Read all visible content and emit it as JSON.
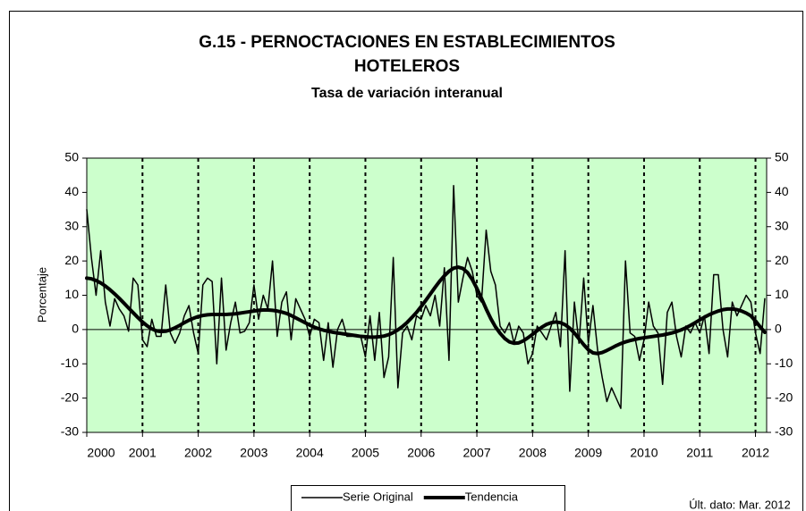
{
  "chart_data": {
    "type": "line",
    "title": [
      "G.15 - PERNOCTACIONES EN ESTABLECIMIENTOS",
      "HOTELEROS"
    ],
    "subtitle": "Tasa de variación interanual",
    "ylabel": "Porcentaje",
    "annotation": "Últ. dato: Mar. 2012",
    "xlim": [
      2000,
      2012.2
    ],
    "xticks": [
      2000,
      2001,
      2002,
      2003,
      2004,
      2005,
      2006,
      2007,
      2008,
      2009,
      2010,
      2011,
      2012
    ],
    "ylim": [
      -30,
      50
    ],
    "yticks": [
      -30,
      -20,
      -10,
      0,
      10,
      20,
      30,
      40,
      50
    ],
    "y2lim": [
      -30,
      50
    ],
    "y2ticks": [
      -30,
      -20,
      -10,
      0,
      10,
      20,
      30,
      40,
      50
    ],
    "grid": true,
    "background": "#ccffcc",
    "legend": "bottom",
    "x": [
      2000,
      2000.083,
      2000.167,
      2000.25,
      2000.333,
      2000.417,
      2000.5,
      2000.583,
      2000.667,
      2000.75,
      2000.833,
      2000.917,
      2001,
      2001.083,
      2001.167,
      2001.25,
      2001.333,
      2001.417,
      2001.5,
      2001.583,
      2001.667,
      2001.75,
      2001.833,
      2001.917,
      2002,
      2002.083,
      2002.167,
      2002.25,
      2002.333,
      2002.417,
      2002.5,
      2002.583,
      2002.667,
      2002.75,
      2002.833,
      2002.917,
      2003,
      2003.083,
      2003.167,
      2003.25,
      2003.333,
      2003.417,
      2003.5,
      2003.583,
      2003.667,
      2003.75,
      2003.833,
      2003.917,
      2004,
      2004.083,
      2004.167,
      2004.25,
      2004.333,
      2004.417,
      2004.5,
      2004.583,
      2004.667,
      2004.75,
      2004.833,
      2004.917,
      2005,
      2005.083,
      2005.167,
      2005.25,
      2005.333,
      2005.417,
      2005.5,
      2005.583,
      2005.667,
      2005.75,
      2005.833,
      2005.917,
      2006,
      2006.083,
      2006.167,
      2006.25,
      2006.333,
      2006.417,
      2006.5,
      2006.583,
      2006.667,
      2006.75,
      2006.833,
      2006.917,
      2007,
      2007.083,
      2007.167,
      2007.25,
      2007.333,
      2007.417,
      2007.5,
      2007.583,
      2007.667,
      2007.75,
      2007.833,
      2007.917,
      2008,
      2008.083,
      2008.167,
      2008.25,
      2008.333,
      2008.417,
      2008.5,
      2008.583,
      2008.667,
      2008.75,
      2008.833,
      2008.917,
      2009,
      2009.083,
      2009.167,
      2009.25,
      2009.333,
      2009.417,
      2009.5,
      2009.583,
      2009.667,
      2009.75,
      2009.833,
      2009.917,
      2010,
      2010.083,
      2010.167,
      2010.25,
      2010.333,
      2010.417,
      2010.5,
      2010.583,
      2010.667,
      2010.75,
      2010.833,
      2010.917,
      2011,
      2011.083,
      2011.167,
      2011.25,
      2011.333,
      2011.417,
      2011.5,
      2011.583,
      2011.667,
      2011.75,
      2011.833,
      2011.917,
      2012,
      2012.083,
      2012.167
    ],
    "series": [
      {
        "name": "Serie Original",
        "color": "#000000",
        "width": 1.5,
        "values": [
          35,
          21,
          10,
          23,
          8,
          1,
          9,
          6,
          4,
          -0.5,
          15,
          13,
          -3,
          -5,
          3,
          -2,
          -2,
          13,
          -1,
          -4,
          -1,
          4,
          7,
          -1,
          -7,
          13,
          15,
          14,
          -10,
          15,
          -6,
          2,
          8,
          -1,
          -0.5,
          2,
          13,
          3,
          10,
          6,
          20,
          -2,
          8,
          11,
          -3,
          9,
          6,
          3,
          -2,
          3,
          2,
          -9,
          2,
          -11,
          0,
          3,
          -2,
          -2,
          -1.5,
          -2,
          -8,
          4,
          -9,
          5,
          -14,
          -8,
          21,
          -17,
          -1,
          1,
          -3,
          4,
          3,
          7,
          4,
          10,
          1,
          18,
          -9,
          42,
          8,
          15,
          21,
          17,
          10,
          8,
          29,
          17,
          13,
          1,
          -1,
          2,
          -4,
          1,
          -1,
          -10,
          -7,
          1,
          -1,
          -3,
          1,
          5,
          -5,
          23,
          -18,
          8,
          -4,
          15,
          -4,
          7,
          -6,
          -14,
          -21,
          -17,
          -20,
          -23,
          20,
          -1,
          -2,
          -9,
          -3,
          8,
          1,
          -1,
          -16,
          5,
          8,
          -2,
          -8,
          1,
          -1,
          2,
          -1,
          4,
          -7,
          16,
          16,
          0,
          -8,
          8,
          4,
          7,
          10,
          8,
          -1,
          -7,
          9
        ]
      },
      {
        "name": "Tendencia",
        "color": "#000000",
        "width": 4,
        "values": [
          15,
          14.8,
          14.3,
          13.6,
          12.7,
          11.6,
          10.4,
          9.1,
          7.7,
          6.3,
          4.9,
          3.5,
          2.2,
          1.1,
          0.2,
          -0.4,
          -0.6,
          -0.5,
          -0.1,
          0.5,
          1.2,
          2,
          2.7,
          3.3,
          3.8,
          4.1,
          4.3,
          4.4,
          4.4,
          4.4,
          4.4,
          4.5,
          4.6,
          4.8,
          5,
          5.2,
          5.4,
          5.6,
          5.7,
          5.7,
          5.6,
          5.4,
          5.1,
          4.7,
          4.1,
          3.4,
          2.7,
          2,
          1.3,
          0.7,
          0.2,
          -0.2,
          -0.5,
          -0.8,
          -1,
          -1.2,
          -1.4,
          -1.6,
          -1.8,
          -2,
          -2.1,
          -2.2,
          -2.2,
          -2.1,
          -1.9,
          -1.5,
          -0.9,
          -0.1,
          0.9,
          2.1,
          3.5,
          5,
          6.7,
          8.5,
          10.4,
          12.3,
          14.1,
          15.7,
          17,
          17.9,
          18.2,
          17.8,
          16.6,
          14.6,
          12,
          9.1,
          6,
          3.2,
          0.8,
          -1.1,
          -2.6,
          -3.6,
          -4,
          -3.9,
          -3.3,
          -2.4,
          -1.4,
          -0.3,
          0.7,
          1.5,
          2,
          2.2,
          2,
          1.4,
          0.4,
          -1,
          -2.7,
          -4.4,
          -5.9,
          -6.8,
          -7,
          -6.7,
          -6.1,
          -5.4,
          -4.7,
          -4.1,
          -3.6,
          -3.2,
          -2.9,
          -2.6,
          -2.4,
          -2.2,
          -2,
          -1.8,
          -1.6,
          -1.3,
          -1,
          -0.6,
          -0.1,
          0.5,
          1.2,
          2,
          2.8,
          3.6,
          4.3,
          4.9,
          5.4,
          5.8,
          6,
          6,
          5.8,
          5.4,
          4.8,
          4,
          2.5,
          0.8,
          -0.8
        ]
      }
    ]
  }
}
